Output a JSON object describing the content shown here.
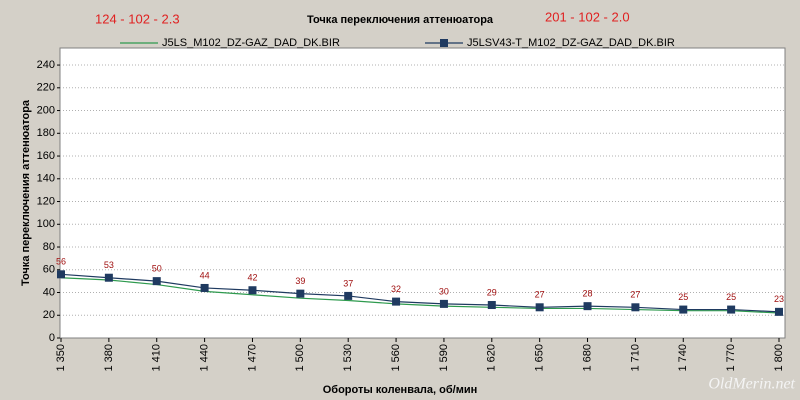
{
  "chart_data": {
    "type": "line",
    "title": "Точка переключения аттенюатора",
    "annotations": [
      "124 - 102 - 2.3",
      "201 - 102 - 2.0"
    ],
    "watermark": "OldMerin.net",
    "xlabel": "Обороты коленвала, об/мин",
    "ylabel": "Точка переключения аттенюатора",
    "categories": [
      "1 350",
      "1 380",
      "1 410",
      "1 440",
      "1 470",
      "1 500",
      "1 530",
      "1 560",
      "1 590",
      "1 620",
      "1 650",
      "1 680",
      "1 710",
      "1 740",
      "1 770",
      "1 800"
    ],
    "series": [
      {
        "name": "J5LS_M102_DZ-GAZ_DAD_DK.BIR",
        "color": "#2e9a4e",
        "marker": false,
        "show_labels": false,
        "values": [
          53,
          51,
          47,
          41,
          38,
          35,
          33,
          30,
          28,
          27,
          26,
          26,
          25,
          24,
          24,
          22
        ]
      },
      {
        "name": "J5LSV43-T_M102_DZ-GAZ_DAD_DK.BIR",
        "color": "#1f3a60",
        "marker": true,
        "show_labels": true,
        "values": [
          56,
          53,
          50,
          44,
          42,
          39,
          37,
          32,
          30,
          29,
          27,
          28,
          27,
          25,
          25,
          23
        ]
      }
    ],
    "ylim": [
      0,
      255
    ],
    "yticks": [
      0,
      20,
      40,
      60,
      80,
      100,
      120,
      140,
      160,
      180,
      200,
      220,
      240
    ],
    "grid": true
  }
}
